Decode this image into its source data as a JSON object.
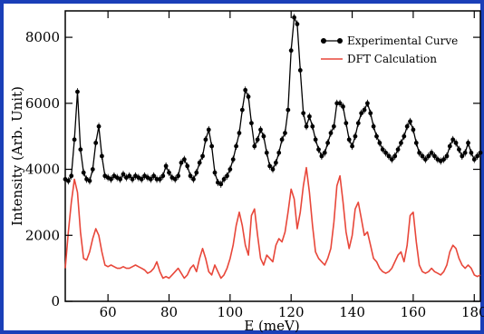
{
  "chart_data": {
    "type": "line",
    "title": "",
    "xlabel": "E (meV)",
    "ylabel": "Intensity (Arb. Unit)",
    "xlim": [
      46,
      182
    ],
    "ylim": [
      0,
      8800
    ],
    "xticks": [
      60,
      80,
      100,
      120,
      140,
      160,
      180
    ],
    "yticks": [
      0,
      2000,
      4000,
      6000,
      8000
    ],
    "legend_position": "top-right",
    "series": [
      {
        "name": "Experimental Curve",
        "color": "#000000",
        "marker": "circle",
        "x": [
          46,
          47,
          48,
          49,
          50,
          51,
          52,
          53,
          54,
          55,
          56,
          57,
          58,
          59,
          60,
          61,
          62,
          63,
          64,
          65,
          66,
          67,
          68,
          69,
          70,
          71,
          72,
          73,
          74,
          75,
          76,
          77,
          78,
          79,
          80,
          81,
          82,
          83,
          84,
          85,
          86,
          87,
          88,
          89,
          90,
          91,
          92,
          93,
          94,
          95,
          96,
          97,
          98,
          99,
          100,
          101,
          102,
          103,
          104,
          105,
          106,
          107,
          108,
          109,
          110,
          111,
          112,
          113,
          114,
          115,
          116,
          117,
          118,
          119,
          120,
          121,
          122,
          123,
          124,
          125,
          126,
          127,
          128,
          129,
          130,
          131,
          132,
          133,
          134,
          135,
          136,
          137,
          138,
          139,
          140,
          141,
          142,
          143,
          144,
          145,
          146,
          147,
          148,
          149,
          150,
          151,
          152,
          153,
          154,
          155,
          156,
          157,
          158,
          159,
          160,
          161,
          162,
          163,
          164,
          165,
          166,
          167,
          168,
          169,
          170,
          171,
          172,
          173,
          174,
          175,
          176,
          177,
          178,
          179,
          180,
          181,
          182
        ],
        "y": [
          3700,
          3650,
          3800,
          4900,
          6350,
          4600,
          3900,
          3700,
          3650,
          4000,
          4800,
          5300,
          4400,
          3800,
          3750,
          3700,
          3800,
          3750,
          3700,
          3850,
          3750,
          3800,
          3700,
          3800,
          3750,
          3700,
          3800,
          3750,
          3700,
          3800,
          3700,
          3700,
          3800,
          4100,
          3900,
          3750,
          3700,
          3800,
          4200,
          4300,
          4100,
          3800,
          3700,
          3900,
          4200,
          4400,
          4900,
          5200,
          4700,
          3900,
          3600,
          3550,
          3700,
          3800,
          4000,
          4300,
          4700,
          5100,
          5800,
          6400,
          6200,
          5400,
          4700,
          4900,
          5200,
          5000,
          4500,
          4100,
          4000,
          4200,
          4500,
          4900,
          5100,
          5800,
          7600,
          8600,
          8400,
          7000,
          5700,
          5300,
          5600,
          5300,
          4900,
          4600,
          4400,
          4500,
          4800,
          5100,
          5300,
          6000,
          6000,
          5900,
          5400,
          4900,
          4700,
          5000,
          5400,
          5700,
          5800,
          6000,
          5700,
          5300,
          5000,
          4800,
          4600,
          4500,
          4400,
          4300,
          4400,
          4600,
          4800,
          5000,
          5300,
          5450,
          5200,
          4800,
          4500,
          4400,
          4300,
          4400,
          4500,
          4400,
          4300,
          4250,
          4300,
          4400,
          4700,
          4900,
          4800,
          4600,
          4400,
          4500,
          4800,
          4500,
          4300,
          4400,
          4500
        ]
      },
      {
        "name": "DFT Calculation",
        "color": "#e8473a",
        "x": [
          46,
          47,
          48,
          49,
          50,
          51,
          52,
          53,
          54,
          55,
          56,
          57,
          58,
          59,
          60,
          61,
          62,
          63,
          64,
          65,
          66,
          67,
          68,
          69,
          70,
          71,
          72,
          73,
          74,
          75,
          76,
          77,
          78,
          79,
          80,
          81,
          82,
          83,
          84,
          85,
          86,
          87,
          88,
          89,
          90,
          91,
          92,
          93,
          94,
          95,
          96,
          97,
          98,
          99,
          100,
          101,
          102,
          103,
          104,
          105,
          106,
          107,
          108,
          109,
          110,
          111,
          112,
          113,
          114,
          115,
          116,
          117,
          118,
          119,
          120,
          121,
          122,
          123,
          124,
          125,
          126,
          127,
          128,
          129,
          130,
          131,
          132,
          133,
          134,
          135,
          136,
          137,
          138,
          139,
          140,
          141,
          142,
          143,
          144,
          145,
          146,
          147,
          148,
          149,
          150,
          151,
          152,
          153,
          154,
          155,
          156,
          157,
          158,
          159,
          160,
          161,
          162,
          163,
          164,
          165,
          166,
          167,
          168,
          169,
          170,
          171,
          172,
          173,
          174,
          175,
          176,
          177,
          178,
          179,
          180,
          181,
          182
        ],
        "y": [
          1000,
          2100,
          3000,
          3700,
          3300,
          2100,
          1300,
          1250,
          1500,
          1900,
          2200,
          2000,
          1500,
          1100,
          1050,
          1100,
          1050,
          1000,
          1000,
          1050,
          1000,
          1000,
          1050,
          1100,
          1050,
          1000,
          950,
          850,
          900,
          1000,
          1200,
          900,
          700,
          750,
          700,
          800,
          900,
          1000,
          850,
          700,
          800,
          1000,
          1100,
          900,
          1300,
          1600,
          1300,
          900,
          800,
          1100,
          900,
          700,
          800,
          1000,
          1300,
          1700,
          2300,
          2700,
          2300,
          1700,
          1400,
          2600,
          2800,
          2000,
          1300,
          1100,
          1400,
          1300,
          1200,
          1700,
          1900,
          1800,
          2100,
          2700,
          3400,
          3100,
          2200,
          2700,
          3500,
          4050,
          3300,
          2300,
          1500,
          1300,
          1200,
          1100,
          1300,
          1600,
          2400,
          3500,
          3800,
          3000,
          2100,
          1600,
          2000,
          2800,
          3000,
          2500,
          2000,
          2100,
          1700,
          1300,
          1200,
          1000,
          900,
          850,
          900,
          1000,
          1200,
          1400,
          1500,
          1200,
          1700,
          2600,
          2700,
          1800,
          1100,
          900,
          850,
          900,
          1000,
          900,
          850,
          800,
          900,
          1100,
          1500,
          1700,
          1600,
          1300,
          1100,
          1000,
          1100,
          1000,
          800,
          750,
          800
        ]
      }
    ]
  }
}
